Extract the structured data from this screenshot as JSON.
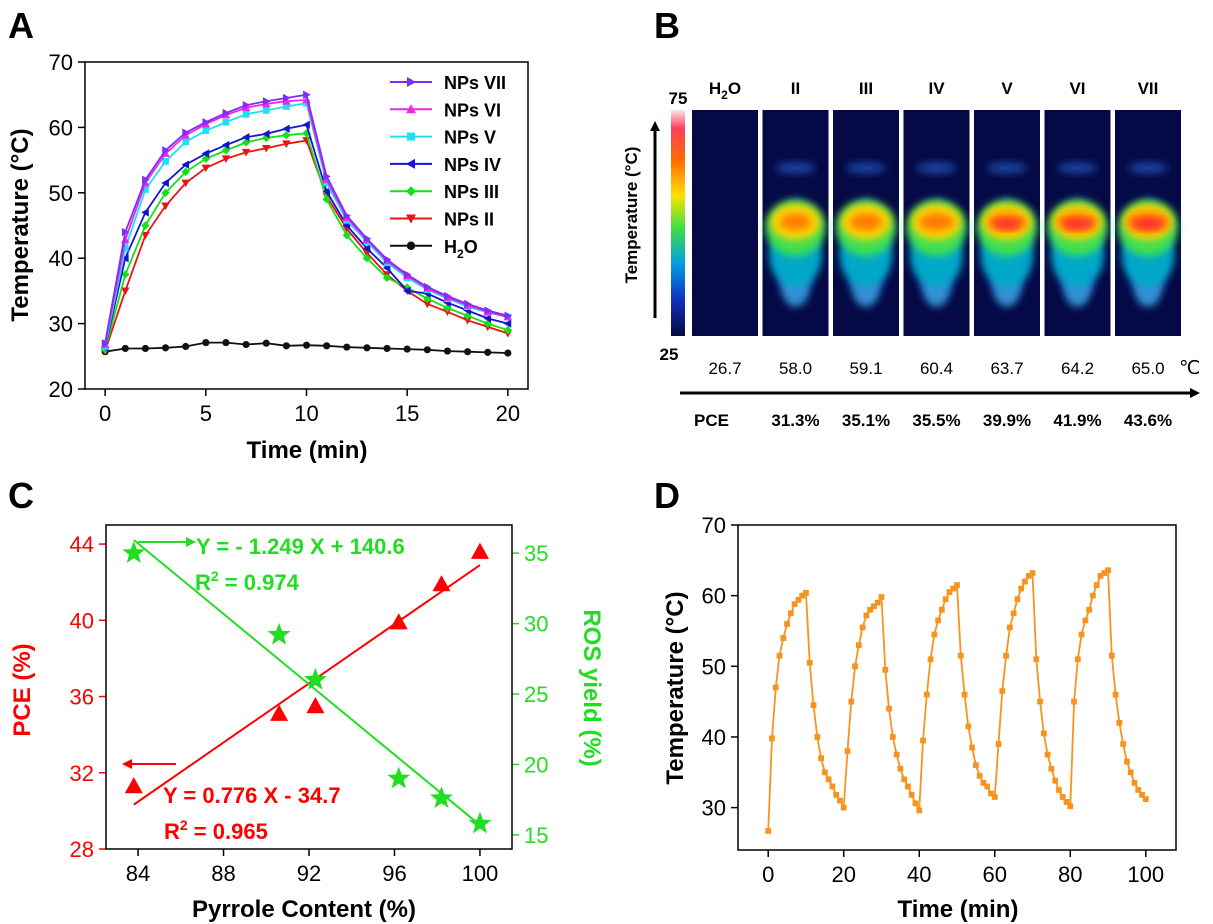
{
  "panel_letters": {
    "a": "A",
    "b": "B",
    "c": "C",
    "d": "D"
  },
  "chart_data": [
    {
      "type": "line",
      "panel": "A",
      "xlabel": "Time (min)",
      "ylabel": "Temperature (°C)",
      "xlim": [
        -1,
        21
      ],
      "ylim": [
        20,
        70
      ],
      "xticks": [
        0,
        5,
        10,
        15,
        20
      ],
      "yticks": [
        20,
        30,
        40,
        50,
        60,
        70
      ],
      "legend_position": "top-right",
      "x": [
        0,
        1,
        2,
        3,
        4,
        5,
        6,
        7,
        8,
        9,
        10,
        11,
        12,
        13,
        14,
        15,
        16,
        17,
        18,
        19,
        20
      ],
      "series": [
        {
          "name": "NPs VII",
          "label_main": "NPs VII",
          "label_sub": "",
          "color": "#7f2ff5",
          "marker": "tri-right",
          "values": [
            27.0,
            44.0,
            52.0,
            56.5,
            59.2,
            60.8,
            62.2,
            63.4,
            64.0,
            64.5,
            65.0,
            52.5,
            46.5,
            43.0,
            39.8,
            37.5,
            35.6,
            34.2,
            33.0,
            32.0,
            31.2
          ]
        },
        {
          "name": "NPs VI",
          "label_main": "NPs VI",
          "label_sub": "",
          "color": "#ec26ee",
          "marker": "tri-up",
          "values": [
            26.8,
            42.8,
            51.5,
            56.0,
            58.8,
            60.5,
            61.9,
            63.0,
            63.6,
            64.0,
            64.2,
            52.0,
            46.2,
            42.8,
            39.6,
            37.3,
            35.4,
            34.0,
            32.8,
            31.8,
            31.0
          ]
        },
        {
          "name": "NPs V",
          "label_main": "NPs V",
          "label_sub": "",
          "color": "#19e3f3",
          "marker": "square",
          "values": [
            26.5,
            41.5,
            50.5,
            54.8,
            57.8,
            59.5,
            60.8,
            62.0,
            62.6,
            63.2,
            63.7,
            51.5,
            45.8,
            42.5,
            39.3,
            37.0,
            35.2,
            33.8,
            32.6,
            31.7,
            31.0
          ]
        },
        {
          "name": "NPs IV",
          "label_main": "NPs IV",
          "label_sub": "",
          "color": "#1414d2",
          "marker": "tri-left",
          "values": [
            26.3,
            40.0,
            47.0,
            51.5,
            54.3,
            56.0,
            57.3,
            58.5,
            59.0,
            59.8,
            60.4,
            50.2,
            45.0,
            41.5,
            38.5,
            35.0,
            34.6,
            33.2,
            32.0,
            30.8,
            30.0
          ]
        },
        {
          "name": "NPs III",
          "label_main": "NPs III",
          "label_sub": "",
          "color": "#16e016",
          "marker": "diamond",
          "values": [
            26.0,
            37.5,
            45.0,
            50.0,
            53.2,
            55.2,
            56.5,
            57.7,
            58.4,
            58.8,
            59.1,
            49.0,
            43.5,
            40.0,
            37.0,
            35.5,
            33.8,
            32.4,
            31.2,
            30.0,
            29.0
          ]
        },
        {
          "name": "NPs II",
          "label_main": "NPs II",
          "label_sub": "",
          "color": "#ea1414",
          "marker": "tri-down",
          "values": [
            25.8,
            35.0,
            43.5,
            48.0,
            51.5,
            53.8,
            55.2,
            56.2,
            56.8,
            57.5,
            58.0,
            49.5,
            44.5,
            40.8,
            37.5,
            35.0,
            33.0,
            31.8,
            30.5,
            29.5,
            28.5
          ]
        },
        {
          "name": "H2O",
          "label_main": "H",
          "label_sub": "2",
          "label_tail": "O",
          "color": "#111111",
          "marker": "circle",
          "values": [
            25.7,
            26.2,
            26.2,
            26.3,
            26.5,
            27.1,
            27.1,
            26.8,
            27.0,
            26.6,
            26.7,
            26.6,
            26.4,
            26.3,
            26.2,
            26.1,
            26.0,
            25.8,
            25.7,
            25.6,
            25.5
          ]
        }
      ]
    },
    {
      "type": "scatter",
      "panel": "C",
      "xlabel": "Pyrrole Content (%)",
      "ylabel_left": "PCE (%)",
      "ylabel_right": "ROS yield (%)",
      "xlim": [
        82.5,
        101.5
      ],
      "ylim_left": [
        28,
        45
      ],
      "ylim_right": [
        14,
        37
      ],
      "xticks": [
        84,
        88,
        92,
        96,
        100
      ],
      "yticks_left": [
        28,
        32,
        36,
        40,
        44
      ],
      "yticks_right": [
        15,
        20,
        25,
        30,
        35
      ],
      "series": [
        {
          "name": "PCE",
          "axis": "left",
          "color": "#ff0000",
          "marker": "triangle",
          "x": [
            83.8,
            90.6,
            92.3,
            96.2,
            98.2,
            100.0
          ],
          "y": [
            31.3,
            35.1,
            35.5,
            39.9,
            41.9,
            43.6
          ],
          "fit": {
            "slope": 0.776,
            "intercept": -34.7,
            "x_range": [
              83.8,
              100.0
            ]
          }
        },
        {
          "name": "ROS yield",
          "axis": "right",
          "color": "#22dd22",
          "marker": "star",
          "x": [
            83.8,
            90.6,
            92.3,
            96.2,
            98.2,
            100.0
          ],
          "y": [
            35.0,
            29.2,
            26.0,
            19.0,
            17.6,
            15.8
          ],
          "fit": {
            "slope": -1.249,
            "intercept": 140.6,
            "x_range": [
              83.8,
              100.0
            ]
          }
        }
      ],
      "annotations": {
        "ros_eq": "Y = - 1.249 X + 140.6",
        "ros_r2_main": "R",
        "ros_r2_sup": "2",
        "ros_r2_tail": " = 0.974",
        "pce_eq": "Y = 0.776 X - 34.7",
        "pce_r2_main": "R",
        "pce_r2_sup": "2",
        "pce_r2_tail": " = 0.965"
      }
    },
    {
      "type": "line",
      "panel": "D",
      "xlabel": "Time (min)",
      "ylabel": "Temperature (°C)",
      "xlim": [
        -8,
        108
      ],
      "ylim": [
        24,
        70
      ],
      "xticks": [
        0,
        20,
        40,
        60,
        80,
        100
      ],
      "yticks": [
        30,
        40,
        50,
        60,
        70
      ],
      "series": [
        {
          "name": "",
          "color": "#f7931e",
          "marker": "square",
          "cycles": [
            {
              "start": 26.7,
              "heat": [
                39.8,
                47.0,
                51.5,
                54.0,
                56.0,
                57.5,
                58.8,
                59.4,
                60.0,
                60.4
              ],
              "cool": [
                50.5,
                44.5,
                40.0,
                37.0,
                35.0,
                34.0,
                33.0,
                31.8,
                31.0,
                30.0
              ]
            },
            {
              "heat": [
                38.0,
                45.0,
                50.0,
                53.0,
                55.5,
                57.2,
                58.0,
                58.5,
                59.0,
                59.8
              ],
              "cool": [
                49.5,
                44.0,
                40.0,
                37.5,
                35.5,
                34.0,
                33.0,
                31.8,
                30.6,
                29.6
              ]
            },
            {
              "heat": [
                39.5,
                46.0,
                51.0,
                54.5,
                56.5,
                58.0,
                59.5,
                60.5,
                61.0,
                61.5
              ],
              "cool": [
                51.5,
                46.0,
                41.5,
                38.5,
                36.0,
                34.5,
                33.5,
                33.0,
                32.0,
                31.5
              ]
            },
            {
              "heat": [
                39.0,
                46.5,
                51.5,
                55.5,
                57.5,
                59.5,
                61.0,
                62.0,
                62.8,
                63.2
              ],
              "cool": [
                51.0,
                45.0,
                40.5,
                37.5,
                35.5,
                33.8,
                32.5,
                31.5,
                30.8,
                30.2
              ]
            },
            {
              "heat": [
                45.0,
                51.0,
                54.5,
                56.5,
                58.0,
                60.0,
                61.5,
                62.8,
                63.2,
                63.6
              ],
              "cool": [
                51.5,
                46.0,
                42.0,
                39.0,
                36.5,
                35.0,
                33.5,
                32.5,
                31.8,
                31.2
              ]
            }
          ]
        }
      ]
    }
  ],
  "panel_b": {
    "type": "thermal-image-strip",
    "scale_max": "75",
    "scale_min": "25",
    "axis_label": "Temperature (°C)",
    "columns": [
      {
        "label_main": "H",
        "label_sub": "2",
        "label_tail": "O",
        "temp": "26.7",
        "intensity": 0.0
      },
      {
        "label_main": "II",
        "label_sub": "",
        "label_tail": "",
        "temp": "58.0",
        "intensity": 0.66
      },
      {
        "label_main": "III",
        "label_sub": "",
        "label_tail": "",
        "temp": "59.1",
        "intensity": 0.7
      },
      {
        "label_main": "IV",
        "label_sub": "",
        "label_tail": "",
        "temp": "60.4",
        "intensity": 0.75
      },
      {
        "label_main": "V",
        "label_sub": "",
        "label_tail": "",
        "temp": "63.7",
        "intensity": 0.86
      },
      {
        "label_main": "VI",
        "label_sub": "",
        "label_tail": "",
        "temp": "64.2",
        "intensity": 0.9
      },
      {
        "label_main": "VII",
        "label_sub": "",
        "label_tail": "",
        "temp": "65.0",
        "intensity": 0.95
      }
    ],
    "temp_unit": "℃",
    "pce_label": "PCE",
    "pce_values": [
      "31.3%",
      "35.1%",
      "35.5%",
      "39.9%",
      "41.9%",
      "43.6%"
    ]
  }
}
